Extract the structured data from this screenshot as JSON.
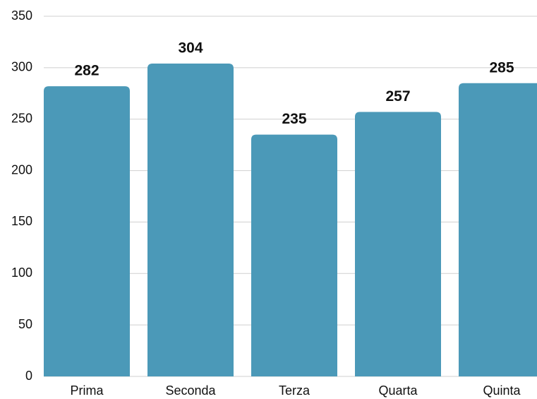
{
  "chart_data": {
    "type": "bar",
    "categories": [
      "Prima",
      "Seconda",
      "Terza",
      "Quarta",
      "Quinta"
    ],
    "values": [
      282,
      304,
      235,
      257,
      285
    ],
    "color": "#4b99b8",
    "ylim": [
      0,
      350
    ],
    "yticks": [
      0,
      50,
      100,
      150,
      200,
      250,
      300,
      350
    ],
    "grid": true
  }
}
